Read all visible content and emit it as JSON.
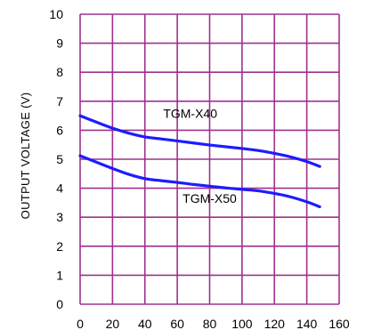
{
  "chart_data": {
    "type": "line",
    "title": "",
    "xlabel": "",
    "ylabel": "OUTPUT VOLTAGE (V)",
    "xlim": [
      0,
      160
    ],
    "ylim": [
      0,
      10
    ],
    "x_ticks": [
      "0",
      "20",
      "40",
      "60",
      "80",
      "100",
      "120",
      "140",
      "160"
    ],
    "y_ticks": [
      "0",
      "1",
      "2",
      "3",
      "4",
      "5",
      "6",
      "7",
      "8",
      "9",
      "10"
    ],
    "grid": true,
    "grid_color": "#a0308e",
    "line_color": "#1c1cff",
    "series": [
      {
        "name": "TGM-X40",
        "x": [
          0,
          10,
          20,
          30,
          40,
          50,
          60,
          70,
          80,
          90,
          100,
          110,
          120,
          130,
          140,
          148
        ],
        "values": [
          6.5,
          6.28,
          6.07,
          5.9,
          5.77,
          5.7,
          5.63,
          5.56,
          5.49,
          5.43,
          5.37,
          5.3,
          5.2,
          5.08,
          4.92,
          4.75
        ]
      },
      {
        "name": "TGM-X50",
        "x": [
          0,
          10,
          20,
          30,
          40,
          50,
          60,
          70,
          80,
          90,
          100,
          110,
          120,
          130,
          140,
          148
        ],
        "values": [
          5.12,
          4.9,
          4.68,
          4.48,
          4.33,
          4.26,
          4.2,
          4.13,
          4.07,
          4.01,
          3.96,
          3.91,
          3.82,
          3.7,
          3.53,
          3.36
        ]
      }
    ],
    "label_positions": [
      {
        "series": "TGM-X40",
        "x": 68,
        "y": 6.42
      },
      {
        "series": "TGM-X50",
        "x": 80,
        "y": 3.5
      }
    ]
  }
}
